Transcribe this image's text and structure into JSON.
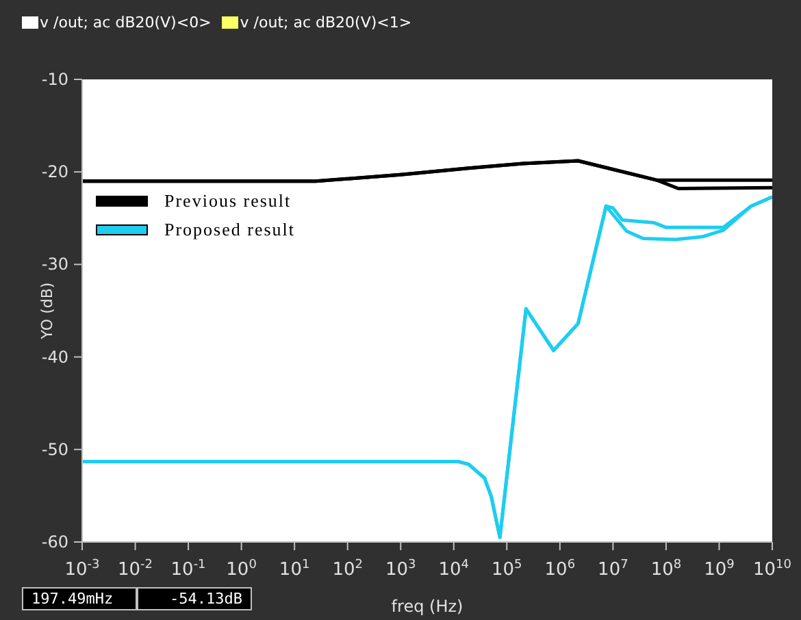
{
  "chart_data": {
    "type": "line",
    "xlabel": "freq (Hz)",
    "ylabel": "YO (dB)",
    "log": "x",
    "legend": "top left",
    "grid": false,
    "marker": "none",
    "line_style": "solid",
    "xlim": [
      0.001,
      10000000000
    ],
    "xticks": [
      {
        "value": 0.001,
        "label": "10$^{-3}$"
      },
      {
        "value": 0.01,
        "label": "10$^{-2}$"
      },
      {
        "value": 0.1,
        "label": "10$^{-1}$"
      },
      {
        "value": 1,
        "label": "10$^{0}$"
      },
      {
        "value": 10,
        "label": "10$^{1}$"
      },
      {
        "value": 100,
        "label": "10$^{2}$"
      },
      {
        "value": 1000,
        "label": "10$^{3}$"
      },
      {
        "value": 10000,
        "label": "10$^{4}$"
      },
      {
        "value": 100000,
        "label": "10$^{5}$"
      },
      {
        "value": 1000000,
        "label": "10$^{6}$"
      },
      {
        "value": 10000000,
        "label": "10$^{7}$"
      },
      {
        "value": 100000000,
        "label": "10$^{8}$"
      },
      {
        "value": 1000000000,
        "label": "10$^{9}$"
      },
      {
        "value": 10000000000,
        "label": "10$^{10}$"
      }
    ],
    "ylim": [
      -60,
      -10
    ],
    "yticks": [
      -60,
      -50,
      -40,
      -30,
      -20,
      -10
    ],
    "series": [
      {
        "name": "Previous result",
        "color": "#000000",
        "x": [
          0.001,
          25,
          1000,
          19000,
          200000,
          2200000,
          68000000,
          10000000000
        ],
        "values": [
          -21,
          -21,
          -20.3,
          -19.6,
          -19.1,
          -18.8,
          -20.9,
          -20.9
        ]
      },
      {
        "color": "#000000",
        "x": [
          0.001,
          25,
          1000,
          19000,
          200000,
          2200000,
          68000000,
          170000000,
          10000000000
        ],
        "values": [
          -21,
          -21,
          -20.3,
          -19.6,
          -19.1,
          -18.8,
          -20.9,
          -21.8,
          -21.7
        ]
      },
      {
        "name": "Proposed result",
        "color": "#1ecdf0",
        "x": [
          0.001,
          12000,
          19000,
          38000,
          51000,
          74000,
          230000,
          760000,
          2200000,
          7400000,
          10000000,
          15000000,
          60000000,
          100000000,
          1200000000,
          4000000000,
          10000000000
        ],
        "values": [
          -51.3,
          -51.3,
          -51.6,
          -53.1,
          -55.1,
          -59.5,
          -34.8,
          -39.3,
          -36.4,
          -23.7,
          -23.9,
          -25.2,
          -25.5,
          -26,
          -26,
          -23.7,
          -22.7
        ]
      },
      {
        "color": "#1ecdf0",
        "x": [
          0.001,
          12000,
          19000,
          38000,
          51000,
          74000,
          230000,
          760000,
          2200000,
          7400000,
          18000000,
          37000000,
          150000000,
          490000000,
          1200000000,
          4000000000,
          10000000000
        ],
        "values": [
          -51.3,
          -51.3,
          -51.6,
          -53.1,
          -55.1,
          -59.5,
          -34.8,
          -39.3,
          -36.4,
          -23.7,
          -26.4,
          -27.2,
          -27.3,
          -27,
          -26.3,
          -23.7,
          -22.7
        ]
      }
    ],
    "annotations": [
      "v /out; ac dB20(V)<0>",
      "v /out; ac dB20(V)<1>",
      "197.49mHz",
      "-54.13dB"
    ]
  }
}
